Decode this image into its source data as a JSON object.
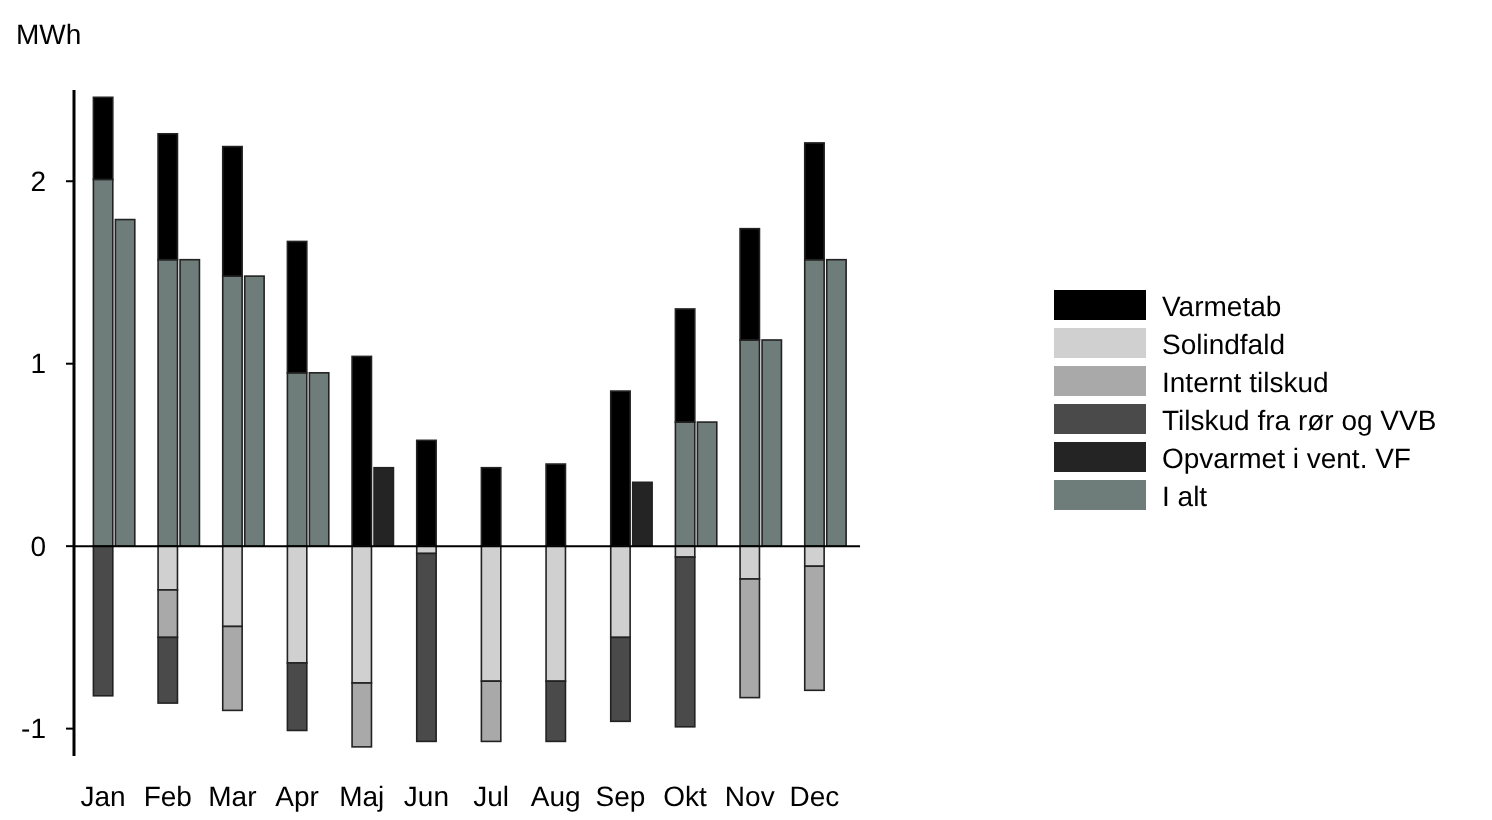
{
  "chart_data": {
    "type": "bar",
    "stacked": true,
    "ylabel": "MWh",
    "categories": [
      "Jan",
      null,
      "Feb",
      null,
      "Mar",
      null,
      "Apr",
      null,
      "Maj",
      null,
      "Jun",
      null,
      "Jul",
      null,
      "Aug",
      null,
      "Sep",
      null,
      "Okt",
      null,
      "Nov",
      null,
      "Dec",
      null
    ],
    "ylim": [
      -1.15,
      2.5
    ],
    "yticks": [
      -1,
      0,
      1,
      2
    ],
    "legend": "right",
    "series": [
      {
        "color": "#6f7d7a",
        "values": [
          2.01,
          null,
          1.57,
          null,
          1.48,
          null,
          0.95,
          null,
          null,
          null,
          null,
          null,
          null,
          null,
          null,
          null,
          null,
          null,
          0.68,
          null,
          1.13,
          null,
          1.57,
          null
        ]
      },
      {
        "name": "Varmetab",
        "color": "#000000",
        "values": [
          0.45,
          null,
          0.69,
          null,
          0.71,
          null,
          0.72,
          null,
          1.04,
          null,
          0.58,
          null,
          0.43,
          null,
          0.45,
          null,
          0.85,
          null,
          0.62,
          null,
          0.61,
          null,
          0.64,
          null
        ]
      },
      {
        "name": "Solindfald",
        "color": "#d0d0d0",
        "values": [
          null,
          null,
          -0.24,
          null,
          -0.44,
          null,
          -0.64,
          null,
          -0.75,
          null,
          -0.04,
          null,
          -0.74,
          null,
          -0.74,
          null,
          -0.5,
          null,
          -0.06,
          null,
          -0.18,
          null,
          -0.11,
          null
        ]
      },
      {
        "name": "Internt tilskud",
        "color": "#a9a9a9",
        "values": [
          null,
          null,
          -0.26,
          null,
          -0.46,
          null,
          null,
          null,
          -0.35,
          null,
          null,
          null,
          -0.33,
          null,
          null,
          null,
          null,
          null,
          null,
          null,
          -0.65,
          null,
          -0.68,
          null
        ]
      },
      {
        "name": "Tilskud fra rør og VVB",
        "color": "#4a4a4a",
        "values": [
          -0.82,
          null,
          -0.36,
          null,
          null,
          null,
          -0.37,
          null,
          null,
          null,
          -1.03,
          null,
          null,
          null,
          -0.33,
          null,
          -0.46,
          null,
          -0.93,
          null,
          null,
          null,
          null,
          null
        ]
      },
      {
        "name": "Opvarmet i vent. VF",
        "color": "#242424",
        "values": [
          null,
          null,
          null,
          null,
          null,
          null,
          null,
          null,
          null,
          0.43,
          null,
          null,
          null,
          null,
          null,
          null,
          null,
          0.35,
          null,
          null,
          null,
          null,
          null,
          null
        ]
      },
      {
        "name": "I alt",
        "color": "#6f7d7a",
        "values": [
          null,
          1.79,
          null,
          1.57,
          null,
          1.48,
          null,
          0.95,
          null,
          null,
          null,
          null,
          null,
          null,
          null,
          null,
          null,
          null,
          null,
          0.68,
          null,
          1.13,
          null,
          1.57
        ]
      }
    ]
  }
}
